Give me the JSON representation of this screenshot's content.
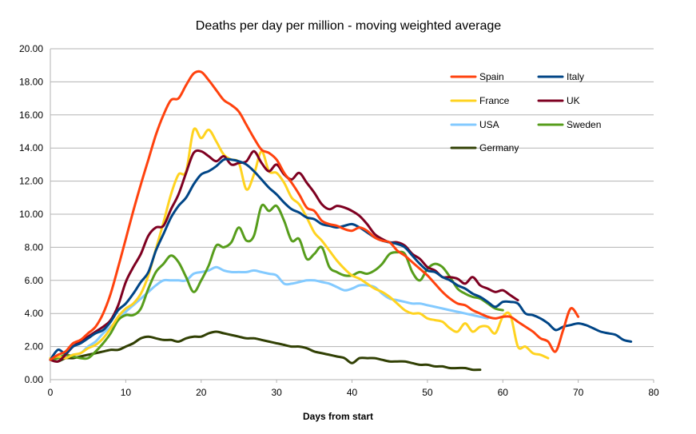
{
  "chart_data": {
    "type": "line",
    "title": "Deaths per day per million - moving weighted average",
    "xlabel": "Days from start",
    "ylabel": "",
    "xlim": [
      0,
      80
    ],
    "ylim": [
      0,
      20
    ],
    "x_ticks": [
      0,
      10,
      20,
      30,
      40,
      50,
      60,
      70,
      80
    ],
    "y_ticks": [
      "0.00",
      "2.00",
      "4.00",
      "6.00",
      "8.00",
      "10.00",
      "12.00",
      "14.00",
      "16.00",
      "18.00",
      "20.00"
    ],
    "grid": "horizontal",
    "legend_position": "top-right",
    "series": [
      {
        "name": "Spain",
        "color": "#ff420e",
        "x": [
          0,
          1,
          2,
          3,
          4,
          5,
          6,
          7,
          8,
          9,
          10,
          11,
          12,
          13,
          14,
          15,
          16,
          17,
          18,
          19,
          20,
          21,
          22,
          23,
          24,
          25,
          26,
          27,
          28,
          29,
          30,
          31,
          32,
          33,
          34,
          35,
          36,
          37,
          38,
          39,
          40,
          41,
          42,
          43,
          44,
          45,
          46,
          47,
          48,
          49,
          50,
          51,
          52,
          53,
          54,
          55,
          56,
          57,
          58,
          59,
          60,
          61,
          62,
          63,
          64,
          65,
          66,
          67,
          68,
          69,
          70
        ],
        "y": [
          1.2,
          1.5,
          1.7,
          2.2,
          2.4,
          2.8,
          3.2,
          4.0,
          5.2,
          6.8,
          8.5,
          10.2,
          11.8,
          13.3,
          14.8,
          16.0,
          16.9,
          17.0,
          17.8,
          18.5,
          18.6,
          18.1,
          17.5,
          16.9,
          16.6,
          16.2,
          15.4,
          14.6,
          13.9,
          13.7,
          13.3,
          12.5,
          11.9,
          11.2,
          10.4,
          10.2,
          9.6,
          9.4,
          9.3,
          9.1,
          9.0,
          9.2,
          9.0,
          8.6,
          8.4,
          8.3,
          7.8,
          7.5,
          7.1,
          6.7,
          6.3,
          5.8,
          5.3,
          4.9,
          4.6,
          4.5,
          4.2,
          4.0,
          3.8,
          3.7,
          3.8,
          3.8,
          3.5,
          3.2,
          2.9,
          2.5,
          2.3,
          1.7,
          3.0,
          4.3,
          3.8
        ]
      },
      {
        "name": "Italy",
        "color": "#004586",
        "x": [
          0,
          1,
          2,
          3,
          4,
          5,
          6,
          7,
          8,
          9,
          10,
          11,
          12,
          13,
          14,
          15,
          16,
          17,
          18,
          19,
          20,
          21,
          22,
          23,
          24,
          25,
          26,
          27,
          28,
          29,
          30,
          31,
          32,
          33,
          34,
          35,
          36,
          37,
          38,
          39,
          40,
          41,
          42,
          43,
          44,
          45,
          46,
          47,
          48,
          49,
          50,
          51,
          52,
          53,
          54,
          55,
          56,
          57,
          58,
          59,
          60,
          61,
          62,
          63,
          64,
          65,
          66,
          67,
          68,
          69,
          70,
          71,
          72,
          73,
          74,
          75,
          76,
          77
        ],
        "y": [
          1.2,
          1.8,
          1.6,
          2.0,
          2.2,
          2.5,
          2.8,
          3.0,
          3.5,
          4.2,
          4.6,
          5.2,
          5.9,
          6.5,
          7.8,
          8.8,
          9.8,
          10.5,
          11.0,
          11.8,
          12.4,
          12.6,
          12.9,
          13.3,
          13.3,
          13.2,
          13.0,
          12.6,
          12.1,
          11.6,
          11.2,
          10.7,
          10.3,
          10.1,
          9.8,
          9.7,
          9.4,
          9.3,
          9.2,
          9.3,
          9.4,
          9.2,
          8.9,
          8.6,
          8.4,
          8.3,
          8.2,
          8.0,
          7.5,
          7.0,
          6.6,
          6.5,
          6.2,
          6.0,
          5.7,
          5.5,
          5.2,
          5.0,
          4.7,
          4.4,
          4.7,
          4.7,
          4.6,
          4.0,
          3.9,
          3.7,
          3.4,
          3.0,
          3.2,
          3.3,
          3.4,
          3.3,
          3.1,
          2.9,
          2.8,
          2.7,
          2.4,
          2.3
        ]
      },
      {
        "name": "France",
        "color": "#ffd320",
        "x": [
          0,
          1,
          2,
          3,
          4,
          5,
          6,
          7,
          8,
          9,
          10,
          11,
          12,
          13,
          14,
          15,
          16,
          17,
          18,
          19,
          20,
          21,
          22,
          23,
          24,
          25,
          26,
          27,
          28,
          29,
          30,
          31,
          32,
          33,
          34,
          35,
          36,
          37,
          38,
          39,
          40,
          41,
          42,
          43,
          44,
          45,
          46,
          47,
          48,
          49,
          50,
          51,
          52,
          53,
          54,
          55,
          56,
          57,
          58,
          59,
          60,
          61,
          62,
          63,
          64,
          65,
          66
        ],
        "y": [
          1.3,
          1.4,
          1.3,
          1.5,
          1.6,
          1.9,
          2.1,
          2.5,
          3.1,
          3.8,
          4.3,
          4.6,
          5.2,
          6.3,
          7.9,
          9.5,
          11.2,
          12.4,
          12.6,
          15.1,
          14.6,
          15.1,
          14.4,
          13.6,
          13.3,
          13.1,
          11.5,
          12.4,
          13.8,
          12.6,
          12.5,
          11.9,
          11.0,
          10.6,
          9.8,
          8.9,
          8.4,
          7.8,
          7.2,
          6.7,
          6.3,
          6.1,
          5.8,
          5.5,
          5.3,
          5.0,
          4.6,
          4.2,
          4.0,
          4.0,
          3.7,
          3.6,
          3.5,
          3.1,
          2.9,
          3.4,
          2.9,
          3.2,
          3.2,
          2.8,
          3.8,
          3.9,
          2.0,
          2.0,
          1.6,
          1.5,
          1.3
        ]
      },
      {
        "name": "UK",
        "color": "#7e0021",
        "x": [
          0,
          1,
          2,
          3,
          4,
          5,
          6,
          7,
          8,
          9,
          10,
          11,
          12,
          13,
          14,
          15,
          16,
          17,
          18,
          19,
          20,
          21,
          22,
          23,
          24,
          25,
          26,
          27,
          28,
          29,
          30,
          31,
          32,
          33,
          34,
          35,
          36,
          37,
          38,
          39,
          40,
          41,
          42,
          43,
          44,
          45,
          46,
          47,
          48,
          49,
          50,
          51,
          52,
          53,
          54,
          55,
          56,
          57,
          58,
          59,
          60,
          61,
          62
        ],
        "y": [
          1.2,
          1.1,
          1.5,
          2.0,
          2.3,
          2.6,
          2.9,
          3.2,
          3.6,
          4.5,
          5.9,
          6.8,
          7.6,
          8.7,
          9.2,
          9.3,
          10.3,
          11.2,
          12.5,
          13.7,
          13.8,
          13.5,
          13.2,
          13.5,
          13.0,
          13.1,
          13.2,
          13.8,
          13.1,
          12.6,
          13.0,
          12.4,
          12.1,
          12.5,
          11.9,
          11.3,
          10.6,
          10.3,
          10.5,
          10.4,
          10.2,
          9.9,
          9.4,
          8.8,
          8.5,
          8.3,
          8.3,
          8.1,
          7.6,
          7.3,
          6.8,
          6.6,
          6.2,
          6.2,
          6.1,
          5.8,
          6.2,
          5.7,
          5.5,
          5.3,
          5.4,
          5.1,
          4.8
        ]
      },
      {
        "name": "USA",
        "color": "#83caff",
        "x": [
          0,
          1,
          2,
          3,
          4,
          5,
          6,
          7,
          8,
          9,
          10,
          11,
          12,
          13,
          14,
          15,
          16,
          17,
          18,
          19,
          20,
          21,
          22,
          23,
          24,
          25,
          26,
          27,
          28,
          29,
          30,
          31,
          32,
          33,
          34,
          35,
          36,
          37,
          38,
          39,
          40,
          41,
          42,
          43,
          44,
          45,
          46,
          47,
          48,
          49,
          50,
          51,
          52,
          53,
          54,
          55,
          56,
          57,
          58
        ],
        "y": [
          1.2,
          1.4,
          1.4,
          1.5,
          1.6,
          2.0,
          2.3,
          2.8,
          3.2,
          3.6,
          4.1,
          4.5,
          4.9,
          5.3,
          5.7,
          6.0,
          6.0,
          6.0,
          6.0,
          6.4,
          6.5,
          6.6,
          6.8,
          6.6,
          6.5,
          6.5,
          6.5,
          6.6,
          6.5,
          6.4,
          6.3,
          5.8,
          5.8,
          5.9,
          6.0,
          6.0,
          5.9,
          5.8,
          5.6,
          5.4,
          5.5,
          5.7,
          5.7,
          5.6,
          5.2,
          4.9,
          4.8,
          4.7,
          4.6,
          4.6,
          4.5,
          4.4,
          4.3,
          4.2,
          4.1,
          4.0,
          3.9,
          3.8,
          3.7
        ]
      },
      {
        "name": "Sweden",
        "color": "#579d1c",
        "x": [
          0,
          1,
          2,
          3,
          4,
          5,
          6,
          7,
          8,
          9,
          10,
          11,
          12,
          13,
          14,
          15,
          16,
          17,
          18,
          19,
          20,
          21,
          22,
          23,
          24,
          25,
          26,
          27,
          28,
          29,
          30,
          31,
          32,
          33,
          34,
          35,
          36,
          37,
          38,
          39,
          40,
          41,
          42,
          43,
          44,
          45,
          46,
          47,
          48,
          49,
          50,
          51,
          52,
          53,
          54,
          55,
          56,
          57,
          58,
          59,
          60
        ],
        "y": [
          1.2,
          1.3,
          1.5,
          1.4,
          1.3,
          1.3,
          1.7,
          2.2,
          2.8,
          3.6,
          3.9,
          3.9,
          4.3,
          5.5,
          6.5,
          7.0,
          7.5,
          7.1,
          6.2,
          5.3,
          6.0,
          6.9,
          8.1,
          8.0,
          8.3,
          9.2,
          8.4,
          8.7,
          10.5,
          10.2,
          10.5,
          9.6,
          8.4,
          8.5,
          7.3,
          7.6,
          8.0,
          6.8,
          6.5,
          6.3,
          6.3,
          6.5,
          6.4,
          6.6,
          7.0,
          7.6,
          7.7,
          7.6,
          6.5,
          6.0,
          6.7,
          7.0,
          6.8,
          6.2,
          5.5,
          5.2,
          5.0,
          4.9,
          4.6,
          4.3,
          4.2
        ]
      },
      {
        "name": "Germany",
        "color": "#314004",
        "x": [
          0,
          1,
          2,
          3,
          4,
          5,
          6,
          7,
          8,
          9,
          10,
          11,
          12,
          13,
          14,
          15,
          16,
          17,
          18,
          19,
          20,
          21,
          22,
          23,
          24,
          25,
          26,
          27,
          28,
          29,
          30,
          31,
          32,
          33,
          34,
          35,
          36,
          37,
          38,
          39,
          40,
          41,
          42,
          43,
          44,
          45,
          46,
          47,
          48,
          49,
          50,
          51,
          52,
          53,
          54,
          55,
          56,
          57
        ],
        "y": [
          1.2,
          1.1,
          1.3,
          1.3,
          1.4,
          1.5,
          1.6,
          1.7,
          1.8,
          1.8,
          2.0,
          2.2,
          2.5,
          2.6,
          2.5,
          2.4,
          2.4,
          2.3,
          2.5,
          2.6,
          2.6,
          2.8,
          2.9,
          2.8,
          2.7,
          2.6,
          2.5,
          2.5,
          2.4,
          2.3,
          2.2,
          2.1,
          2.0,
          2.0,
          1.9,
          1.7,
          1.6,
          1.5,
          1.4,
          1.3,
          1.0,
          1.3,
          1.3,
          1.3,
          1.2,
          1.1,
          1.1,
          1.1,
          1.0,
          0.9,
          0.9,
          0.8,
          0.8,
          0.7,
          0.7,
          0.7,
          0.6,
          0.6
        ]
      }
    ]
  }
}
